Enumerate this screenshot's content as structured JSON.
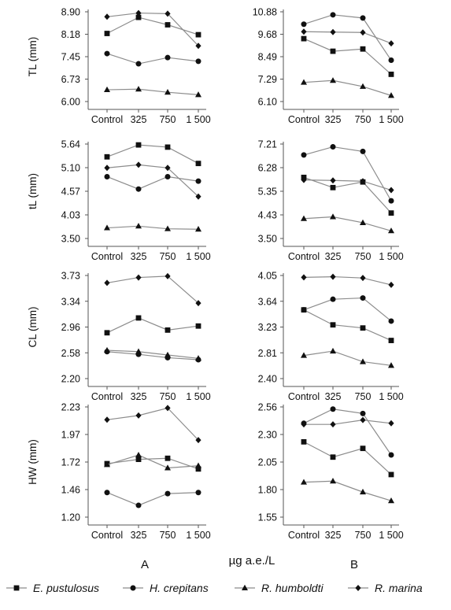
{
  "x_axis_title": "µg a.e./L",
  "column_labels": [
    "A",
    "B"
  ],
  "legend": [
    {
      "label": "E. pustulosus",
      "marker": "square"
    },
    {
      "label": "H. crepitans",
      "marker": "circle"
    },
    {
      "label": "R. humboldti",
      "marker": "triangle"
    },
    {
      "label": "R. marina",
      "marker": "diamond"
    }
  ],
  "colors": {
    "line": "#8c8c8c",
    "marker": "#111111",
    "axis": "#555555"
  },
  "chart_data": [
    {
      "type": "line",
      "column": "A",
      "ylabel": "TL (mm)",
      "categories": [
        "Control",
        "325",
        "750",
        "1 500"
      ],
      "yticks": [
        "6.00",
        "6.73",
        "7.45",
        "8.18",
        "8.90"
      ],
      "ylim": [
        6.0,
        8.9
      ],
      "series": [
        {
          "name": "E. pustulosus",
          "values": [
            8.2,
            8.72,
            8.48,
            8.16
          ]
        },
        {
          "name": "H. crepitans",
          "values": [
            7.55,
            7.22,
            7.42,
            7.3
          ]
        },
        {
          "name": "R. humboldti",
          "values": [
            6.38,
            6.4,
            6.3,
            6.22
          ]
        },
        {
          "name": "R. marina",
          "values": [
            8.74,
            8.86,
            8.84,
            7.8
          ]
        }
      ]
    },
    {
      "type": "line",
      "column": "B",
      "ylabel": "",
      "categories": [
        "Control",
        "325",
        "750",
        "1 500"
      ],
      "yticks": [
        "6.10",
        "7.29",
        "8.49",
        "9.68",
        "10.88"
      ],
      "ylim": [
        6.1,
        10.88
      ],
      "series": [
        {
          "name": "E. pustulosus",
          "values": [
            9.45,
            8.78,
            8.9,
            7.55
          ]
        },
        {
          "name": "H. crepitans",
          "values": [
            10.22,
            10.72,
            10.55,
            8.3
          ]
        },
        {
          "name": "R. humboldti",
          "values": [
            7.12,
            7.22,
            6.9,
            6.42
          ]
        },
        {
          "name": "R. marina",
          "values": [
            9.82,
            9.8,
            9.78,
            9.2
          ]
        }
      ]
    },
    {
      "type": "line",
      "column": "A",
      "ylabel": "tL (mm)",
      "categories": [
        "Control",
        "325",
        "750",
        "1 500"
      ],
      "yticks": [
        "3.50",
        "4.03",
        "4.57",
        "5.10",
        "5.64"
      ],
      "ylim": [
        3.5,
        5.64
      ],
      "series": [
        {
          "name": "E. pustulosus",
          "values": [
            5.35,
            5.62,
            5.57,
            5.2
          ]
        },
        {
          "name": "H. crepitans",
          "values": [
            4.9,
            4.62,
            4.9,
            4.8
          ]
        },
        {
          "name": "R. humboldti",
          "values": [
            3.74,
            3.78,
            3.72,
            3.71
          ]
        },
        {
          "name": "R. marina",
          "values": [
            5.1,
            5.17,
            5.1,
            4.45
          ]
        }
      ]
    },
    {
      "type": "line",
      "column": "B",
      "ylabel": "",
      "categories": [
        "Control",
        "325",
        "750",
        "1 500"
      ],
      "yticks": [
        "3.50",
        "4.43",
        "5.35",
        "6.28",
        "7.21"
      ],
      "ylim": [
        3.5,
        7.21
      ],
      "series": [
        {
          "name": "E. pustulosus",
          "values": [
            5.9,
            5.5,
            5.72,
            4.5
          ]
        },
        {
          "name": "H. crepitans",
          "values": [
            6.78,
            7.1,
            6.92,
            4.98
          ]
        },
        {
          "name": "R. humboldti",
          "values": [
            4.28,
            4.35,
            4.12,
            3.8
          ]
        },
        {
          "name": "R. marina",
          "values": [
            5.8,
            5.78,
            5.75,
            5.4
          ]
        }
      ]
    },
    {
      "type": "line",
      "column": "A",
      "ylabel": "CL (mm)",
      "categories": [
        "Control",
        "325",
        "750",
        "1 500"
      ],
      "yticks": [
        "2.20",
        "2.58",
        "2.96",
        "3.34",
        "3.73"
      ],
      "ylim": [
        2.2,
        3.73
      ],
      "series": [
        {
          "name": "E. pustulosus",
          "values": [
            2.88,
            3.1,
            2.92,
            2.98
          ]
        },
        {
          "name": "H. crepitans",
          "values": [
            2.6,
            2.56,
            2.51,
            2.48
          ]
        },
        {
          "name": "R. humboldti",
          "values": [
            2.62,
            2.6,
            2.55,
            2.5
          ]
        },
        {
          "name": "R. marina",
          "values": [
            3.62,
            3.7,
            3.72,
            3.32
          ]
        }
      ]
    },
    {
      "type": "line",
      "column": "B",
      "ylabel": "",
      "categories": [
        "Control",
        "325",
        "750",
        "1 500"
      ],
      "yticks": [
        "2.40",
        "2.81",
        "3.23",
        "3.64",
        "4.05"
      ],
      "ylim": [
        2.4,
        4.05
      ],
      "series": [
        {
          "name": "E. pustulosus",
          "values": [
            3.5,
            3.26,
            3.21,
            3.01
          ]
        },
        {
          "name": "H. crepitans",
          "values": [
            3.5,
            3.67,
            3.69,
            3.32
          ]
        },
        {
          "name": "R. humboldti",
          "values": [
            2.77,
            2.84,
            2.67,
            2.61
          ]
        },
        {
          "name": "R. marina",
          "values": [
            4.02,
            4.03,
            4.01,
            3.9
          ]
        }
      ]
    },
    {
      "type": "line",
      "column": "A",
      "ylabel": "HW (mm)",
      "categories": [
        "Control",
        "325",
        "750",
        "1 500"
      ],
      "yticks": [
        "1.20",
        "1.46",
        "1.72",
        "1.97",
        "2.23"
      ],
      "ylim": [
        1.2,
        2.23
      ],
      "series": [
        {
          "name": "E. pustulosus",
          "values": [
            1.7,
            1.74,
            1.75,
            1.65
          ]
        },
        {
          "name": "H. crepitans",
          "values": [
            1.43,
            1.31,
            1.42,
            1.43
          ]
        },
        {
          "name": "R. humboldti",
          "values": [
            1.69,
            1.78,
            1.66,
            1.68
          ]
        },
        {
          "name": "R. marina",
          "values": [
            2.11,
            2.15,
            2.22,
            1.92
          ]
        }
      ]
    },
    {
      "type": "line",
      "column": "B",
      "ylabel": "",
      "categories": [
        "Control",
        "325",
        "750",
        "1 500"
      ],
      "yticks": [
        "1.55",
        "1.80",
        "2.05",
        "2.30",
        "2.56"
      ],
      "ylim": [
        1.55,
        2.56
      ],
      "series": [
        {
          "name": "E. pustulosus",
          "values": [
            2.24,
            2.1,
            2.18,
            1.94
          ]
        },
        {
          "name": "H. crepitans",
          "values": [
            2.41,
            2.54,
            2.5,
            2.12
          ]
        },
        {
          "name": "R. humboldti",
          "values": [
            1.87,
            1.88,
            1.78,
            1.7
          ]
        },
        {
          "name": "R. marina",
          "values": [
            2.4,
            2.4,
            2.44,
            2.41
          ]
        }
      ]
    }
  ]
}
